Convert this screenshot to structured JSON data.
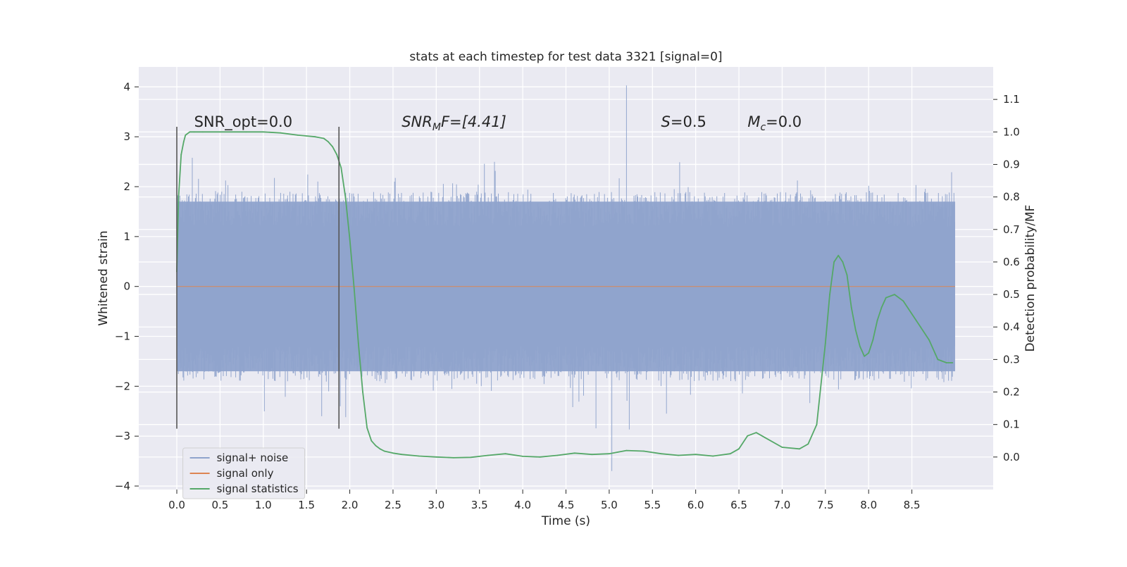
{
  "chart_data": {
    "type": "line",
    "title": "stats at each timestep for test data 3321 [signal=0]",
    "xlabel": "Time (s)",
    "ylabel": "Whitened strain",
    "y2label": "Detection probability/MF",
    "xlim": [
      -0.44,
      9.44
    ],
    "ylim": [
      -4.07,
      4.4
    ],
    "y2lim": [
      -0.1,
      1.2
    ],
    "x_ticks": [
      "0.0",
      "0.5",
      "1.0",
      "1.5",
      "2.0",
      "2.5",
      "3.0",
      "3.5",
      "4.0",
      "4.5",
      "5.0",
      "5.5",
      "6.0",
      "6.5",
      "7.0",
      "7.5",
      "8.0",
      "8.5"
    ],
    "y_ticks": [
      "4",
      "3",
      "2",
      "1",
      "0",
      "−1",
      "−2",
      "−3",
      "−4"
    ],
    "y2_ticks": [
      "1.1",
      "1.0",
      "0.9",
      "0.8",
      "0.7",
      "0.6",
      "0.5",
      "0.4",
      "0.3",
      "0.2",
      "0.1",
      "0.0"
    ],
    "annotations": {
      "snr_opt": "SNR_opt=0.0",
      "snr_mf_name": "SNR",
      "snr_mf_sub": "M",
      "snr_mf_rest": "F=[4.41]",
      "s_name": "S",
      "s_rest": "=0.5",
      "mc_name": "M",
      "mc_sub": "c",
      "mc_rest": "=0.0"
    },
    "annotation_positions": {
      "snr_opt": [
        0.2,
        3.2
      ],
      "snr_mf": [
        2.6,
        3.2
      ],
      "s": [
        5.6,
        3.2
      ],
      "mc": [
        6.6,
        3.2
      ]
    },
    "vertical_markers": {
      "x": [
        0.0,
        1.875
      ],
      "y_range": [
        -2.85,
        3.2
      ]
    },
    "legend": {
      "position": "lower-left",
      "entries": [
        "signal+ noise",
        "signal only",
        "signal statistics"
      ]
    },
    "series": [
      {
        "name": "signal+ noise",
        "axis": "left",
        "color": "#8fa3cc",
        "kind": "noise",
        "x_range": [
          0.0,
          9.0
        ],
        "y_range_typical": [
          -1.7,
          1.7
        ],
        "y_max": 4.03,
        "y_min": -3.7
      },
      {
        "name": "signal only",
        "axis": "left",
        "color": "#dd8452",
        "x": [
          0.0,
          9.0
        ],
        "y": [
          0.0,
          0.0
        ]
      },
      {
        "name": "signal statistics",
        "axis": "right",
        "color": "#55a868",
        "x": [
          0.0,
          0.02,
          0.05,
          0.08,
          0.1,
          0.15,
          0.2,
          0.3,
          0.5,
          0.8,
          1.0,
          1.2,
          1.4,
          1.6,
          1.7,
          1.75,
          1.8,
          1.85,
          1.9,
          1.95,
          2.0,
          2.05,
          2.1,
          2.15,
          2.2,
          2.25,
          2.3,
          2.35,
          2.4,
          2.5,
          2.6,
          2.8,
          3.0,
          3.2,
          3.4,
          3.6,
          3.8,
          4.0,
          4.2,
          4.4,
          4.6,
          4.8,
          5.0,
          5.1,
          5.2,
          5.4,
          5.6,
          5.8,
          6.0,
          6.2,
          6.4,
          6.5,
          6.6,
          6.7,
          6.8,
          7.0,
          7.2,
          7.3,
          7.4,
          7.5,
          7.55,
          7.6,
          7.65,
          7.7,
          7.75,
          7.8,
          7.85,
          7.9,
          7.95,
          8.0,
          8.05,
          8.1,
          8.15,
          8.2,
          8.3,
          8.4,
          8.5,
          8.6,
          8.7,
          8.8,
          8.9,
          8.97
        ],
        "y": [
          0.57,
          0.8,
          0.93,
          0.97,
          0.99,
          1.0,
          1.0,
          1.0,
          1.0,
          1.0,
          1.0,
          0.997,
          0.99,
          0.985,
          0.98,
          0.97,
          0.955,
          0.93,
          0.89,
          0.8,
          0.67,
          0.52,
          0.35,
          0.2,
          0.09,
          0.05,
          0.035,
          0.025,
          0.018,
          0.012,
          0.008,
          0.003,
          0.0,
          -0.002,
          -0.001,
          0.005,
          0.01,
          0.002,
          0.0,
          0.005,
          0.012,
          0.008,
          0.01,
          0.015,
          0.02,
          0.018,
          0.01,
          0.005,
          0.008,
          0.003,
          0.01,
          0.025,
          0.065,
          0.075,
          0.06,
          0.03,
          0.025,
          0.04,
          0.1,
          0.35,
          0.5,
          0.6,
          0.62,
          0.6,
          0.56,
          0.46,
          0.39,
          0.34,
          0.31,
          0.32,
          0.36,
          0.42,
          0.46,
          0.49,
          0.5,
          0.48,
          0.44,
          0.4,
          0.36,
          0.3,
          0.29,
          0.29
        ]
      }
    ]
  }
}
